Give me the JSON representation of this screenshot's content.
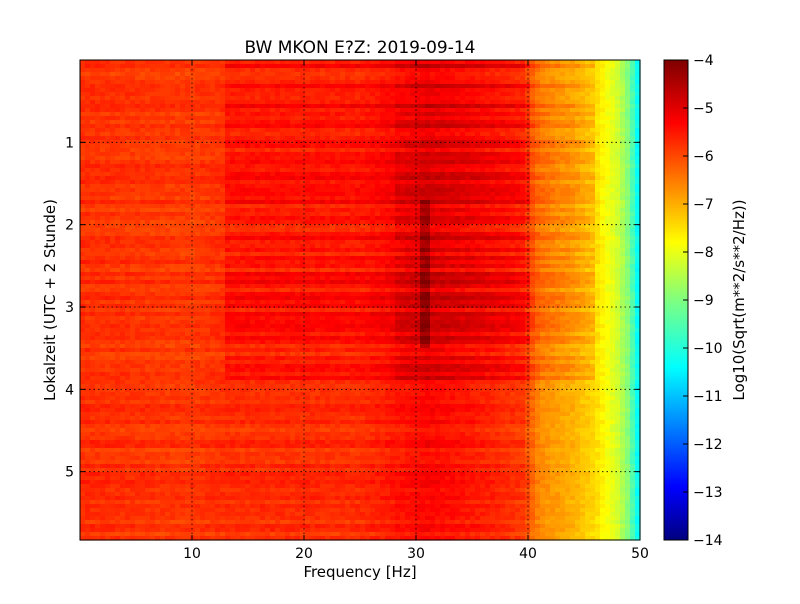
{
  "chart_data": {
    "type": "heatmap",
    "title": "BW MKON E?Z: 2019-09-14",
    "xlabel": "Frequency [Hz]",
    "ylabel": "Lokalzeit (UTC + 2 Stunde)",
    "colorbar_label": "Log10(Sqrt(m**2/s**2/Hz))",
    "xlim": [
      0,
      50
    ],
    "ylim": [
      0,
      5.83
    ],
    "y_inverted": true,
    "x_ticks": [
      10,
      20,
      30,
      40,
      50
    ],
    "x_tick_labels": [
      "10",
      "20",
      "30",
      "40",
      "50"
    ],
    "y_ticks": [
      1,
      2,
      3,
      4,
      5
    ],
    "y_tick_labels": [
      "1",
      "2",
      "3",
      "4",
      "5"
    ],
    "colorbar_range": [
      -14,
      -4
    ],
    "colorbar_ticks": [
      -4,
      -5,
      -6,
      -7,
      -8,
      -9,
      -10,
      -11,
      -12,
      -13,
      -14
    ],
    "colorbar_tick_labels": [
      "−4",
      "−5",
      "−6",
      "−7",
      "−8",
      "−9",
      "−10",
      "−11",
      "−12",
      "−13",
      "−14"
    ],
    "colormap": "jet",
    "grid": true,
    "grid_style": "dotted",
    "frequency_profile": [
      {
        "f": 0,
        "v": -5.7
      },
      {
        "f": 10,
        "v": -5.8
      },
      {
        "f": 13,
        "v": -5.7
      },
      {
        "f": 25,
        "v": -5.7
      },
      {
        "f": 31,
        "v": -5.3
      },
      {
        "f": 35,
        "v": -5.5
      },
      {
        "f": 39.5,
        "v": -5.8
      },
      {
        "f": 41,
        "v": -6.6
      },
      {
        "f": 44,
        "v": -7.0
      },
      {
        "f": 46,
        "v": -7.4
      },
      {
        "f": 48,
        "v": -8.2
      },
      {
        "f": 49,
        "v": -9.0
      },
      {
        "f": 50,
        "v": -10.5
      }
    ],
    "active_period": {
      "t_start": 0,
      "t_end": 3.9,
      "f_start": 13,
      "f_end": 46,
      "boost": 0.5
    },
    "tremor_line_hz": 30.8
  }
}
